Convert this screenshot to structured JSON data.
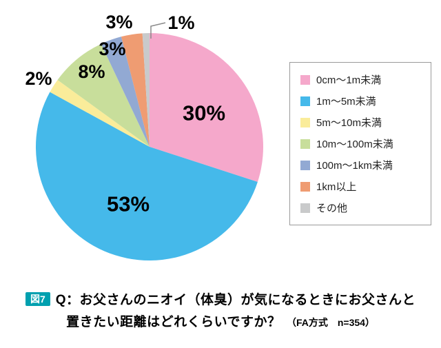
{
  "chart_data": {
    "type": "pie",
    "title": "",
    "categories": [
      "0cm〜1m未満",
      "1m〜5m未満",
      "5m〜10m未満",
      "10m〜100m未満",
      "100m〜1km未満",
      "1km以上",
      "その他"
    ],
    "values": [
      30,
      53,
      2,
      8,
      3,
      3,
      1
    ],
    "unit": "%",
    "value_labels": [
      "30%",
      "53%",
      "2%",
      "8%",
      "3%",
      "3%",
      "1%"
    ],
    "colors": [
      "#F5A8CB",
      "#45B9EA",
      "#FAEC9A",
      "#C8DE9B",
      "#92A9D3",
      "#EF9C72",
      "#C9CACB"
    ],
    "start_angle_deg": 0,
    "direction": "clockwise",
    "legend_position": "right",
    "grid": false
  },
  "caption": {
    "tag": "図7",
    "tag_bg": "#00A0AF",
    "line1": "Q：お父さんのニオイ（体臭）が気になるときにお父さんと",
    "line2": "置きたい距離はどれくらいですか？",
    "note": "（FA方式　n=354）"
  }
}
